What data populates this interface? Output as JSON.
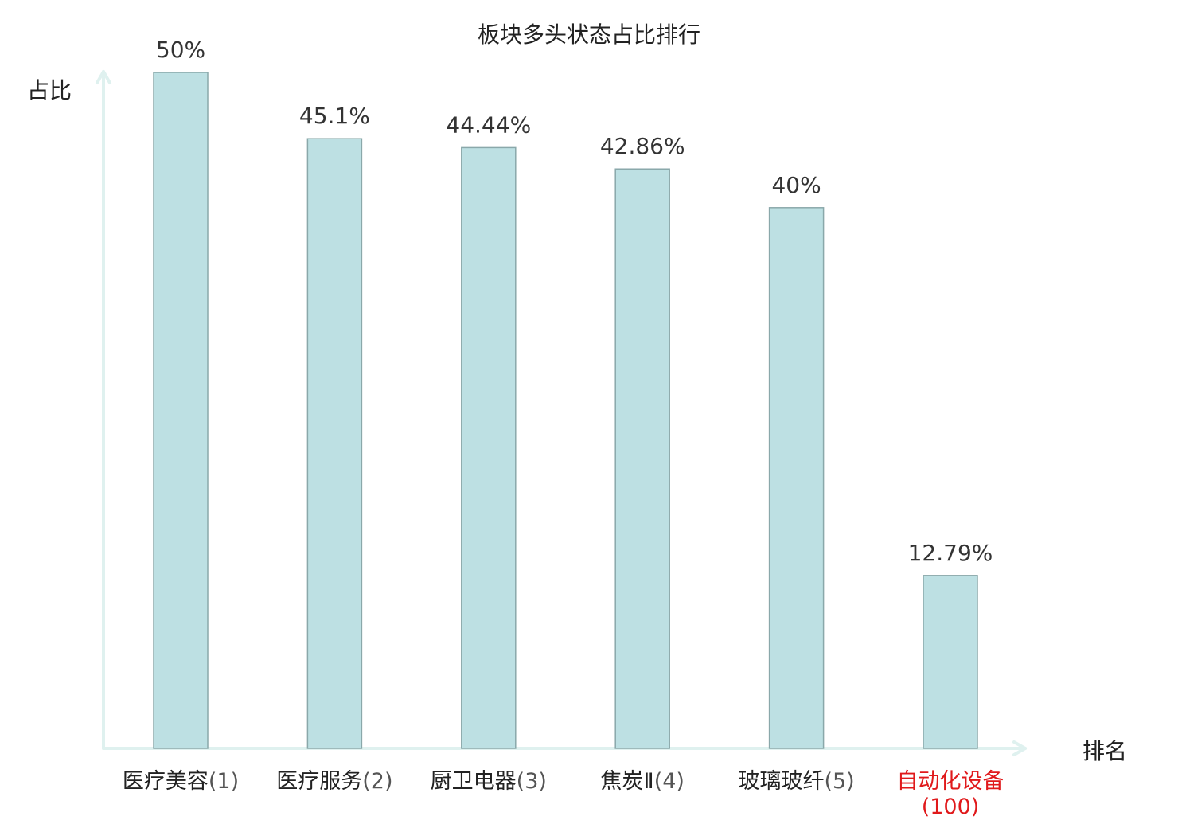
{
  "chart_data": {
    "type": "bar",
    "title": "板块多头状态占比排行",
    "xlabel": "排名",
    "ylabel": "占比",
    "ylim": [
      0,
      50
    ],
    "categories": [
      {
        "name": "医疗美容",
        "rank": "(1)",
        "highlight": false
      },
      {
        "name": "医疗服务",
        "rank": "(2)",
        "highlight": false
      },
      {
        "name": "厨卫电器",
        "rank": "(3)",
        "highlight": false
      },
      {
        "name": "焦炭Ⅱ",
        "rank": "(4)",
        "highlight": false
      },
      {
        "name": "玻璃玻纤",
        "rank": "(5)",
        "highlight": false
      },
      {
        "name": "自动化设备",
        "rank": "(100)",
        "highlight": true
      }
    ],
    "values": [
      50,
      45.1,
      44.44,
      42.86,
      40,
      12.79
    ],
    "value_labels": [
      "50%",
      "45.1%",
      "44.44%",
      "42.86%",
      "40%",
      "12.79%"
    ],
    "grid": false,
    "colors": {
      "bar_fill": "#bde0e3",
      "bar_stroke": "#8aa8aa",
      "axis": "#dff1ef",
      "highlight_text": "#e0191b"
    }
  }
}
